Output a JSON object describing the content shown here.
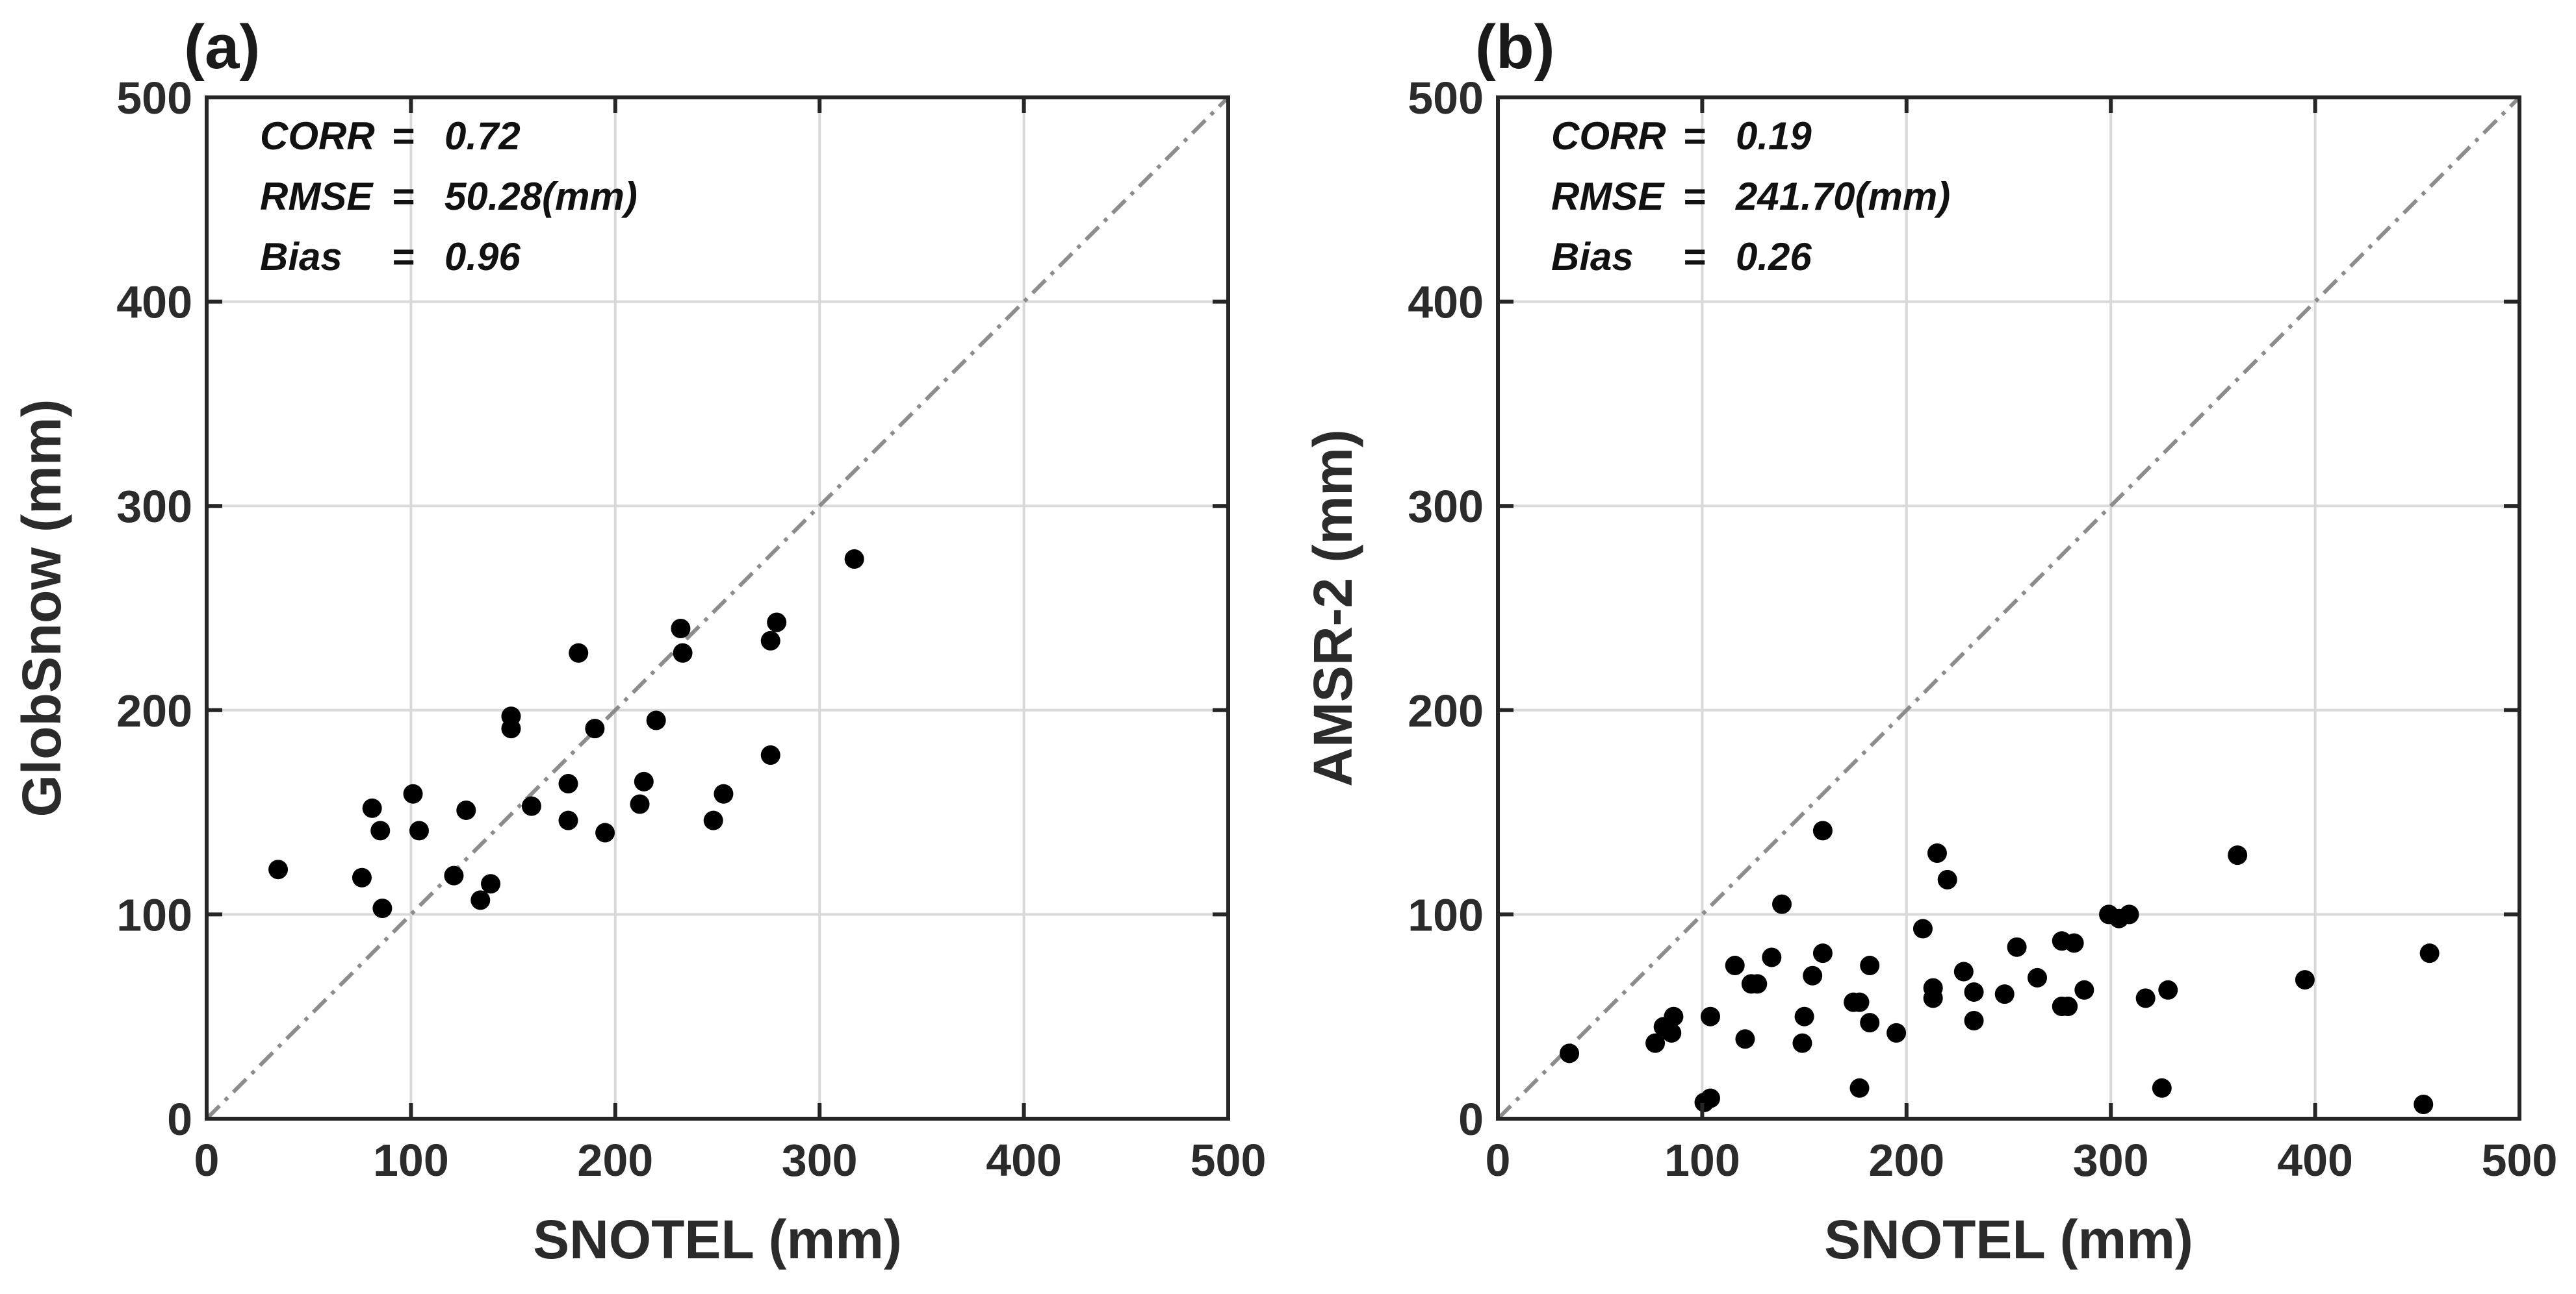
{
  "chart_data": [
    {
      "type": "scatter",
      "panel_label": "(a)",
      "xlabel": "SNOTEL (mm)",
      "ylabel": "GlobSnow (mm)",
      "xlim": [
        0,
        500
      ],
      "ylim": [
        0,
        500
      ],
      "xticks": [
        0,
        100,
        200,
        300,
        400,
        500
      ],
      "yticks": [
        0,
        100,
        200,
        300,
        400,
        500
      ],
      "grid": true,
      "reference_line": "1:1",
      "stats": [
        {
          "label": "CORR",
          "sep": "=",
          "value": "0.72"
        },
        {
          "label": "RMSE",
          "sep": "=",
          "value": "50.28(mm)"
        },
        {
          "label": "Bias",
          "sep": "=",
          "value": "0.96"
        }
      ],
      "points": [
        {
          "x": 35,
          "y": 122
        },
        {
          "x": 76,
          "y": 118
        },
        {
          "x": 81,
          "y": 152
        },
        {
          "x": 85,
          "y": 141
        },
        {
          "x": 86,
          "y": 103
        },
        {
          "x": 101,
          "y": 159
        },
        {
          "x": 104,
          "y": 141
        },
        {
          "x": 121,
          "y": 119
        },
        {
          "x": 127,
          "y": 151
        },
        {
          "x": 134,
          "y": 107
        },
        {
          "x": 139,
          "y": 115
        },
        {
          "x": 149,
          "y": 191
        },
        {
          "x": 149,
          "y": 197
        },
        {
          "x": 159,
          "y": 153
        },
        {
          "x": 177,
          "y": 164
        },
        {
          "x": 177,
          "y": 146
        },
        {
          "x": 182,
          "y": 228
        },
        {
          "x": 190,
          "y": 191
        },
        {
          "x": 195,
          "y": 140
        },
        {
          "x": 212,
          "y": 154
        },
        {
          "x": 214,
          "y": 165
        },
        {
          "x": 220,
          "y": 195
        },
        {
          "x": 232,
          "y": 240
        },
        {
          "x": 233,
          "y": 228
        },
        {
          "x": 248,
          "y": 146
        },
        {
          "x": 253,
          "y": 159
        },
        {
          "x": 276,
          "y": 178
        },
        {
          "x": 276,
          "y": 234
        },
        {
          "x": 279,
          "y": 243
        },
        {
          "x": 317,
          "y": 274
        }
      ]
    },
    {
      "type": "scatter",
      "panel_label": "(b)",
      "xlabel": "SNOTEL (mm)",
      "ylabel": "AMSR-2 (mm)",
      "xlim": [
        0,
        500
      ],
      "ylim": [
        0,
        500
      ],
      "xticks": [
        0,
        100,
        200,
        300,
        400,
        500
      ],
      "yticks": [
        0,
        100,
        200,
        300,
        400,
        500
      ],
      "grid": true,
      "reference_line": "1:1",
      "stats": [
        {
          "label": "CORR",
          "sep": "=",
          "value": "0.19"
        },
        {
          "label": "RMSE",
          "sep": "=",
          "value": "241.70(mm)"
        },
        {
          "label": "Bias",
          "sep": "=",
          "value": "0.26"
        }
      ],
      "points": [
        {
          "x": 35,
          "y": 32
        },
        {
          "x": 77,
          "y": 37
        },
        {
          "x": 81,
          "y": 45
        },
        {
          "x": 85,
          "y": 42
        },
        {
          "x": 86,
          "y": 50
        },
        {
          "x": 101,
          "y": 8
        },
        {
          "x": 104,
          "y": 10
        },
        {
          "x": 104,
          "y": 50
        },
        {
          "x": 116,
          "y": 75
        },
        {
          "x": 121,
          "y": 39
        },
        {
          "x": 124,
          "y": 66
        },
        {
          "x": 127,
          "y": 66
        },
        {
          "x": 134,
          "y": 79
        },
        {
          "x": 139,
          "y": 105
        },
        {
          "x": 149,
          "y": 37
        },
        {
          "x": 150,
          "y": 50
        },
        {
          "x": 154,
          "y": 70
        },
        {
          "x": 159,
          "y": 81
        },
        {
          "x": 159,
          "y": 141
        },
        {
          "x": 174,
          "y": 57
        },
        {
          "x": 177,
          "y": 57
        },
        {
          "x": 177,
          "y": 15
        },
        {
          "x": 182,
          "y": 75
        },
        {
          "x": 182,
          "y": 47
        },
        {
          "x": 195,
          "y": 42
        },
        {
          "x": 208,
          "y": 93
        },
        {
          "x": 213,
          "y": 59
        },
        {
          "x": 213,
          "y": 64
        },
        {
          "x": 215,
          "y": 130
        },
        {
          "x": 220,
          "y": 117
        },
        {
          "x": 228,
          "y": 72
        },
        {
          "x": 233,
          "y": 62
        },
        {
          "x": 233,
          "y": 48
        },
        {
          "x": 248,
          "y": 61
        },
        {
          "x": 254,
          "y": 84
        },
        {
          "x": 264,
          "y": 69
        },
        {
          "x": 276,
          "y": 55
        },
        {
          "x": 276,
          "y": 87
        },
        {
          "x": 279,
          "y": 55
        },
        {
          "x": 282,
          "y": 86
        },
        {
          "x": 287,
          "y": 63
        },
        {
          "x": 299,
          "y": 100
        },
        {
          "x": 304,
          "y": 98
        },
        {
          "x": 309,
          "y": 100
        },
        {
          "x": 317,
          "y": 59
        },
        {
          "x": 325,
          "y": 15
        },
        {
          "x": 328,
          "y": 63
        },
        {
          "x": 362,
          "y": 129
        },
        {
          "x": 395,
          "y": 68
        },
        {
          "x": 453,
          "y": 7
        },
        {
          "x": 456,
          "y": 81
        }
      ]
    }
  ]
}
